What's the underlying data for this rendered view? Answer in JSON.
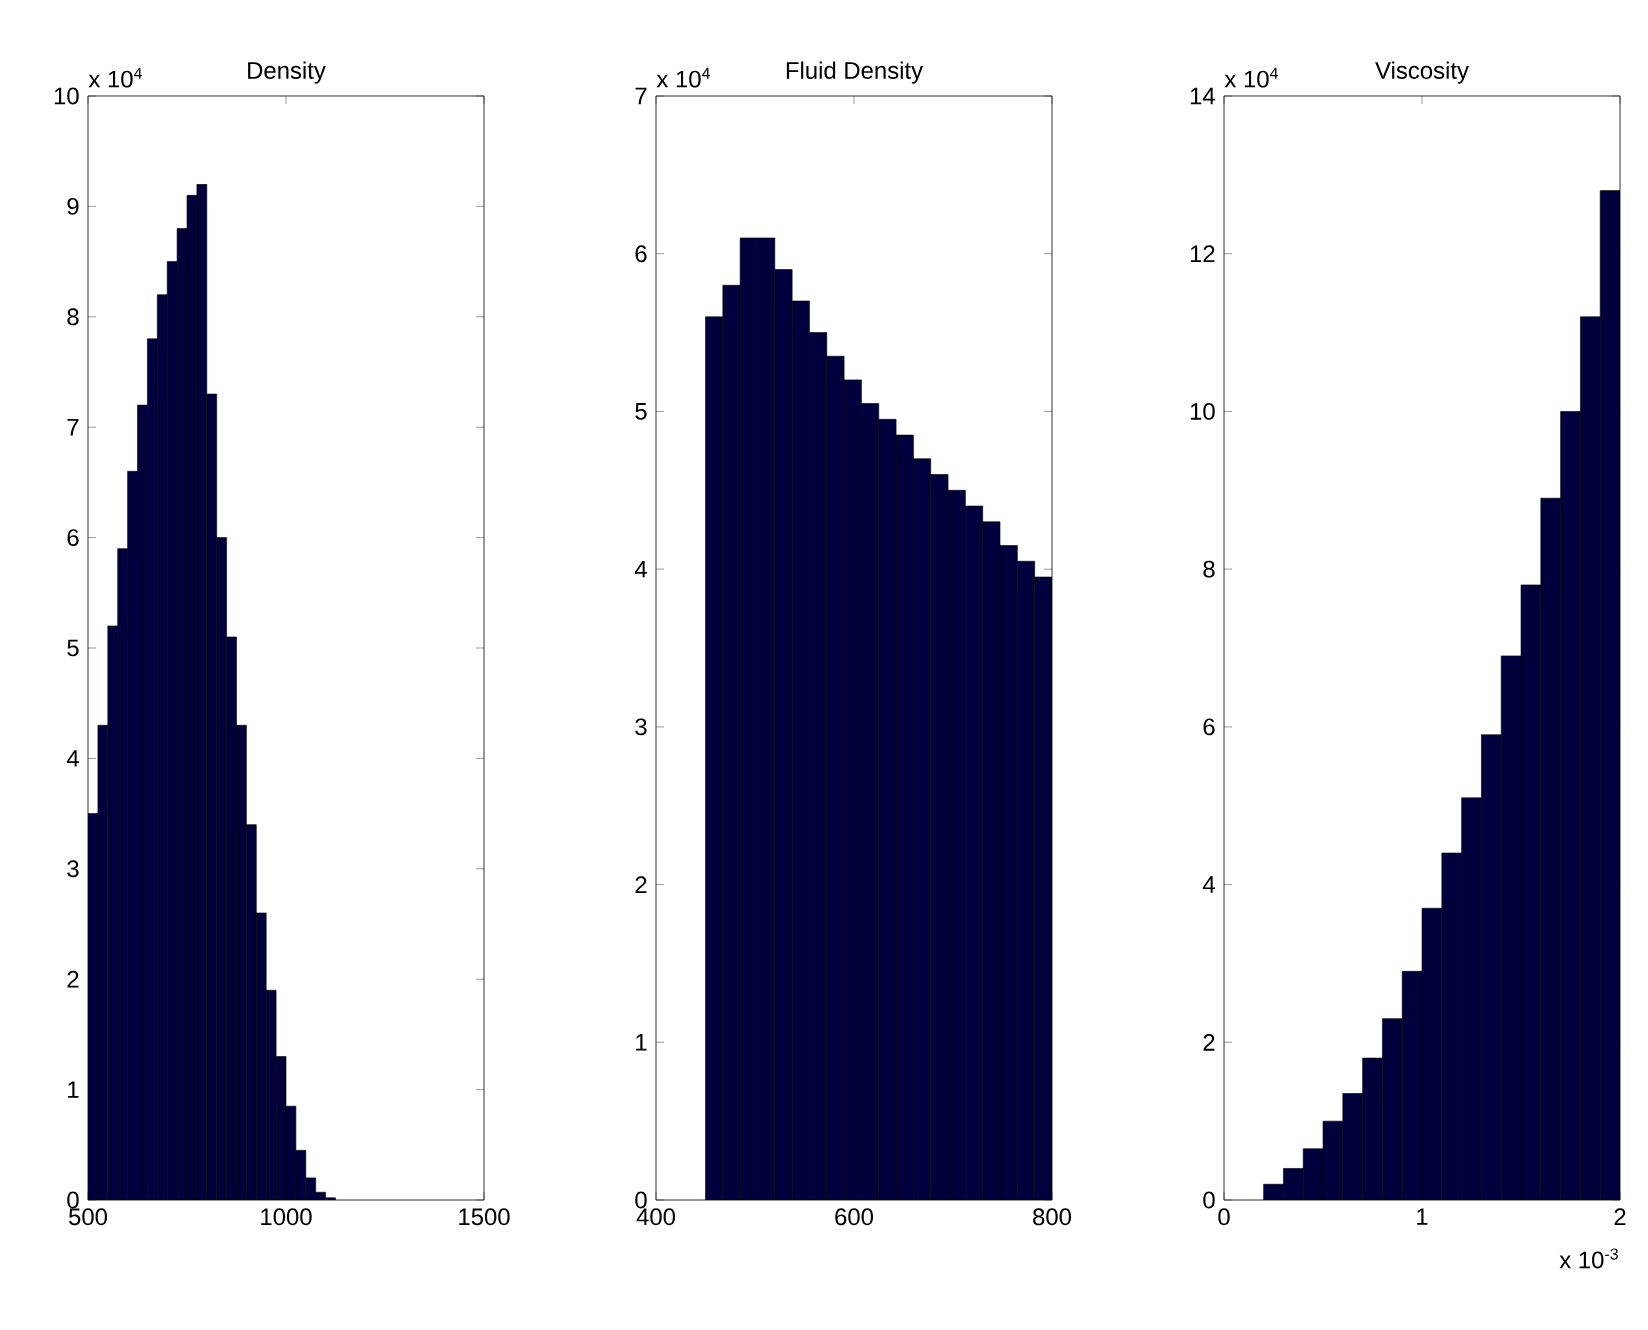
{
  "chart_data": [
    {
      "type": "histogram",
      "title": "Density",
      "color": "#00003c",
      "xlim": [
        500,
        1500
      ],
      "ylim": [
        0,
        10
      ],
      "xticks": [
        500,
        1000,
        1500
      ],
      "yticks": [
        0,
        1,
        2,
        3,
        4,
        5,
        6,
        7,
        8,
        9,
        10
      ],
      "annotations": [
        "x 10$^{4}$"
      ],
      "bins": [
        500,
        525,
        550,
        575,
        600,
        625,
        650,
        675,
        700,
        725,
        750,
        775,
        800,
        825,
        850,
        875,
        900,
        925,
        950,
        975,
        1000,
        1025,
        1050,
        1075,
        1100,
        1125
      ],
      "values": [
        3.5,
        4.3,
        5.2,
        5.9,
        6.6,
        7.2,
        7.8,
        8.2,
        8.5,
        8.8,
        9.1,
        9.2,
        7.3,
        6.0,
        5.1,
        4.3,
        3.4,
        2.6,
        1.9,
        1.3,
        0.85,
        0.45,
        0.2,
        0.07,
        0.02
      ]
    },
    {
      "type": "histogram",
      "title": "Fluid Density",
      "color": "#00003c",
      "xlim": [
        400,
        800
      ],
      "ylim": [
        0,
        7
      ],
      "xticks": [
        400,
        600,
        800
      ],
      "yticks": [
        0,
        1,
        2,
        3,
        4,
        5,
        6,
        7
      ],
      "annotations": [
        "x 10$^{4}$"
      ],
      "bins": [
        450,
        467.5,
        485,
        502.5,
        520,
        537.5,
        555,
        572.5,
        590,
        607.5,
        625,
        642.5,
        660,
        677.5,
        695,
        712.5,
        730,
        747.5,
        765,
        782.5,
        800
      ],
      "values": [
        5.6,
        5.8,
        6.1,
        6.1,
        5.9,
        5.7,
        5.5,
        5.35,
        5.2,
        5.05,
        4.95,
        4.85,
        4.7,
        4.6,
        4.5,
        4.4,
        4.3,
        4.15,
        4.05,
        3.95
      ]
    },
    {
      "type": "histogram",
      "title": "Viscosity",
      "color": "#00003c",
      "xlim": [
        0,
        2
      ],
      "ylim": [
        0,
        14
      ],
      "xticks": [
        0,
        1,
        2
      ],
      "yticks": [
        0,
        2,
        4,
        6,
        8,
        10,
        12,
        14
      ],
      "annotations": [
        "x 10$^{4}$",
        "x 10$^{-3}$"
      ],
      "bins": [
        0.2,
        0.3,
        0.4,
        0.5,
        0.6,
        0.7,
        0.8,
        0.9,
        1.0,
        1.1,
        1.2,
        1.3,
        1.4,
        1.5,
        1.6,
        1.7,
        1.8,
        1.9,
        2.0
      ],
      "values": [
        0.2,
        0.4,
        0.65,
        1.0,
        1.35,
        1.8,
        2.3,
        2.9,
        3.7,
        4.4,
        5.1,
        5.9,
        6.9,
        7.8,
        8.9,
        10.0,
        11.2,
        12.8
      ]
    }
  ]
}
